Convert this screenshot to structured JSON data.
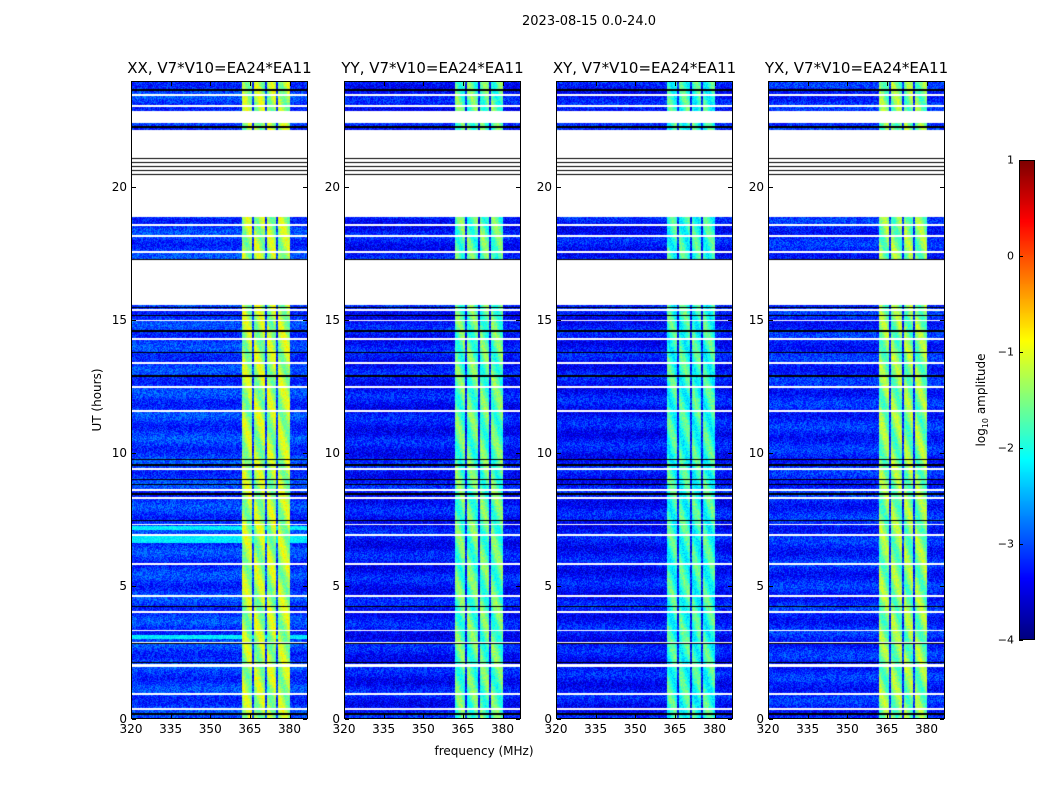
{
  "chart_data": {
    "type": "heatmap",
    "title": "2023-08-15 0.0-24.0",
    "xlabel": "frequency (MHz)",
    "ylabel": "UT (hours)",
    "xlim": [
      320,
      387
    ],
    "ylim": [
      0,
      24
    ],
    "xticks": [
      320,
      335,
      350,
      365,
      380
    ],
    "yticks": [
      0,
      5,
      10,
      15,
      20
    ],
    "colorbar": {
      "label_main": "log",
      "label_sub": "10",
      "label_rest": " amplitude",
      "range": [
        -4,
        1
      ],
      "ticks": [
        1,
        0,
        -1,
        -2,
        -3,
        -4
      ],
      "tick_labels": [
        "1",
        "0",
        "−1",
        "−2",
        "−3",
        "−4"
      ],
      "colormap": "jet"
    },
    "panels": [
      {
        "title": "XX, V7*V10=EA24*EA11",
        "background_level": -3.1,
        "rfi_level": -1.3,
        "show_ylabel": true
      },
      {
        "title": "YY, V7*V10=EA24*EA11",
        "background_level": -3.3,
        "rfi_level": -1.7,
        "show_ylabel": false
      },
      {
        "title": "XY, V7*V10=EA24*EA11",
        "background_level": -3.3,
        "rfi_level": -1.9,
        "show_ylabel": false
      },
      {
        "title": "YX, V7*V10=EA24*EA11",
        "background_level": -3.2,
        "rfi_level": -1.5,
        "show_ylabel": false
      }
    ],
    "valid_time_ranges_hours": [
      [
        0,
        15.6
      ],
      [
        17.3,
        18.9
      ],
      [
        22.2,
        22.45
      ],
      [
        22.9,
        24.0
      ]
    ],
    "striped_time_range_hours": [
      20.4,
      21.2
    ],
    "flagged_time_lines_hours": [
      0.35,
      0.9,
      1.95,
      2.0,
      2.85,
      3.3,
      4.0,
      4.6,
      5.8,
      6.9,
      7.3,
      8.3,
      8.6,
      9.4,
      11.6,
      12.5,
      13.4,
      14.3,
      15.0,
      15.4,
      17.6,
      18.2,
      18.6,
      23.1,
      23.5
    ],
    "black_time_lines_hours": [
      0.15,
      2.1,
      2.8,
      4.2,
      7.45,
      8.45,
      8.8,
      9.0,
      9.55,
      9.75,
      12.9,
      13.8,
      14.6,
      15.2,
      15.5,
      17.3,
      22.3,
      23.7
    ],
    "rfi_bands_mhz": [
      [
        362,
        366
      ],
      [
        366.8,
        371
      ],
      [
        371.8,
        375
      ],
      [
        376,
        380.5
      ]
    ],
    "bright_rows_hours": [
      [
        6.6,
        6.85
      ],
      [
        3.0,
        3.12
      ],
      [
        7.1,
        7.25
      ]
    ]
  }
}
